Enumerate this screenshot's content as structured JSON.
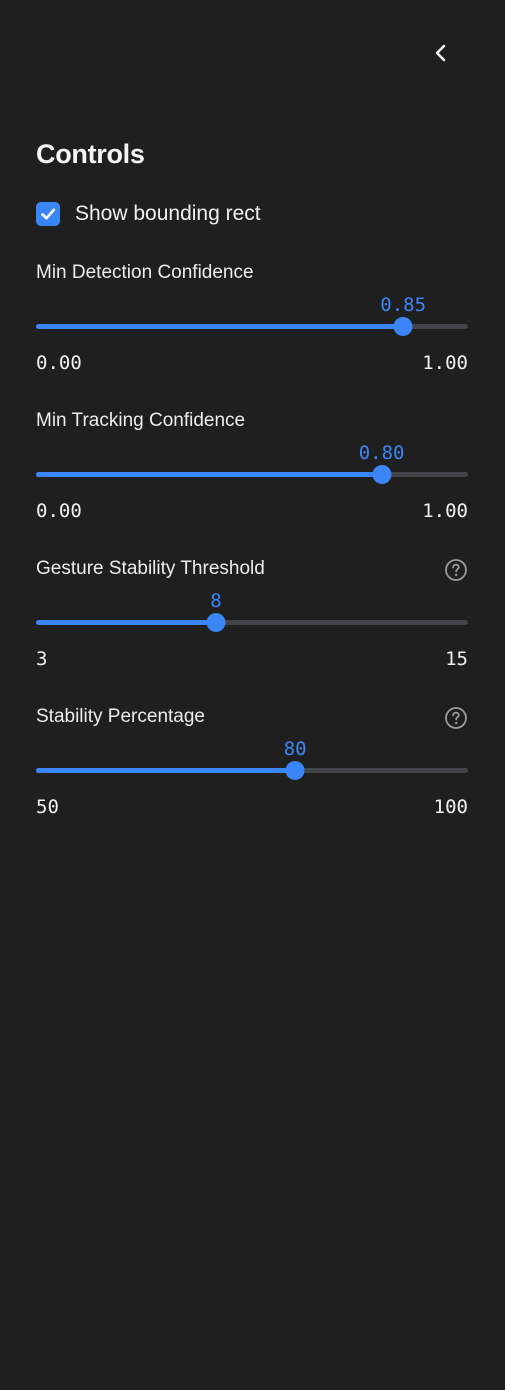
{
  "sidebar": {
    "collapse_icon": "chevron-left-icon",
    "title": "Controls",
    "accent_color": "#3b86f7",
    "checkbox": {
      "label": "Show bounding rect",
      "checked": true
    },
    "sliders": [
      {
        "label": "Min Detection Confidence",
        "value": "0.85",
        "value_num": 0.85,
        "min": "0.00",
        "min_num": 0,
        "max": "1.00",
        "max_num": 1,
        "help_icon": false
      },
      {
        "label": "Min Tracking Confidence",
        "value": "0.80",
        "value_num": 0.8,
        "min": "0.00",
        "min_num": 0,
        "max": "1.00",
        "max_num": 1,
        "help_icon": false
      },
      {
        "label": "Gesture Stability Threshold",
        "value": "8",
        "value_num": 8,
        "min": "3",
        "min_num": 3,
        "max": "15",
        "max_num": 15,
        "help_icon": true
      },
      {
        "label": "Stability Percentage",
        "value": "80",
        "value_num": 80,
        "min": "50",
        "min_num": 50,
        "max": "100",
        "max_num": 100,
        "help_icon": true
      }
    ]
  }
}
